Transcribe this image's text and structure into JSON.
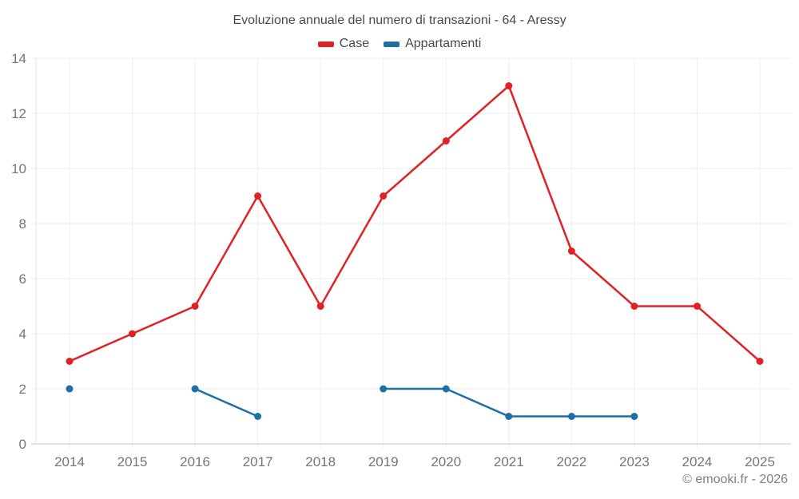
{
  "title": "Evoluzione annuale del numero di transazioni - 64 - Aressy",
  "footer": "© emooki.fr - 2026",
  "colors": {
    "case_red": "#e02227",
    "appartamenti_blue": "#1e6fa6",
    "gridline": "#ededed",
    "axis_baseline": "#c9c9c9",
    "axis_line": "#e3e3e3",
    "tick_label": "#757575",
    "title_text": "#4a4a4a",
    "footer_text": "#808080"
  },
  "chart_data": {
    "type": "line",
    "title": "Evoluzione annuale del numero di transazioni - 64 - Aressy",
    "x": [
      2014,
      2015,
      2016,
      2017,
      2018,
      2019,
      2020,
      2021,
      2022,
      2023,
      2024,
      2025
    ],
    "series": [
      {
        "name": "Case",
        "color": "#e02227",
        "values": [
          3,
          4,
          5,
          9,
          5,
          9,
          11,
          13,
          7,
          5,
          5,
          3
        ]
      },
      {
        "name": "Appartamenti",
        "color": "#1e6fa6",
        "values": [
          2,
          null,
          2,
          1,
          null,
          2,
          2,
          1,
          1,
          1,
          null,
          null
        ]
      }
    ],
    "xlabel": "",
    "ylabel": "",
    "ylim": [
      0,
      14
    ],
    "yticks": [
      0,
      2,
      4,
      6,
      8,
      10,
      12,
      14
    ],
    "grid": true,
    "legend_position": "top",
    "marker_radius": 4.5,
    "line_width": 2.5
  }
}
